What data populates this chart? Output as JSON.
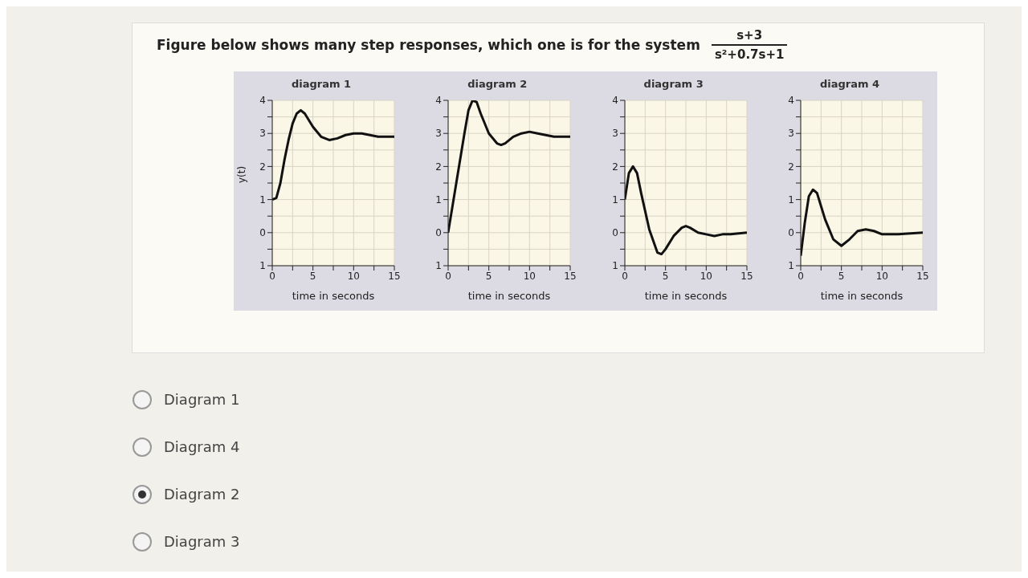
{
  "chart_data": [
    {
      "type": "other",
      "title": "Figure below shows many step responses, which one is for the system",
      "annotations": [
        "s+3",
        "s²+0.7s+1"
      ]
    },
    {
      "type": "line",
      "title": "diagram 1",
      "xlabel": "time in seconds",
      "ylabel": "y(t)",
      "xlim": [
        0,
        15
      ],
      "ylim": [
        -1,
        4
      ],
      "xticks": [
        0,
        {
          "value": 2.5,
          "label": null
        },
        5,
        {
          "value": 7.5,
          "label": null
        },
        10,
        {
          "value": 12.5,
          "label": null
        },
        15
      ],
      "yticks": [
        {
          "value": -1,
          "label": "1"
        },
        {
          "value": -0.5,
          "label": null
        },
        0,
        {
          "value": 0.5,
          "label": null
        },
        1,
        {
          "value": 1.5,
          "label": null
        },
        2,
        {
          "value": 2.5,
          "label": null
        },
        3,
        {
          "value": 3.5,
          "label": null
        },
        4
      ],
      "grid": true,
      "x": [
        0,
        0.5,
        1,
        1.5,
        2,
        2.5,
        3,
        3.5,
        4,
        5,
        6,
        7,
        8,
        9,
        10,
        11,
        12,
        13,
        14,
        15
      ],
      "series": [
        {
          "color": "#111111",
          "values": [
            1.0,
            1.05,
            1.5,
            2.2,
            2.8,
            3.3,
            3.6,
            3.7,
            3.6,
            3.2,
            2.9,
            2.8,
            2.85,
            2.95,
            3.0,
            3.0,
            2.95,
            2.9,
            2.9,
            2.9
          ]
        }
      ]
    },
    {
      "type": "line",
      "title": "diagram 2",
      "xlabel": "time in seconds",
      "xlim": [
        0,
        15
      ],
      "ylim": [
        -1,
        4
      ],
      "xticks": [
        0,
        {
          "value": 2.5,
          "label": null
        },
        5,
        {
          "value": 7.5,
          "label": null
        },
        10,
        {
          "value": 12.5,
          "label": null
        },
        15
      ],
      "yticks": [
        {
          "value": -1,
          "label": "1"
        },
        {
          "value": -0.5,
          "label": null
        },
        0,
        {
          "value": 0.5,
          "label": null
        },
        1,
        {
          "value": 1.5,
          "label": null
        },
        2,
        {
          "value": 2.5,
          "label": null
        },
        3,
        {
          "value": 3.5,
          "label": null
        },
        4
      ],
      "grid": true,
      "x": [
        0,
        1,
        2,
        2.5,
        3,
        3.5,
        4,
        5,
        6,
        6.5,
        7,
        8,
        9,
        10,
        11,
        12,
        13,
        15
      ],
      "series": [
        {
          "color": "#111111",
          "values": [
            0,
            1.5,
            3.0,
            3.7,
            4.0,
            3.95,
            3.6,
            3.0,
            2.7,
            2.65,
            2.7,
            2.9,
            3.0,
            3.05,
            3.0,
            2.95,
            2.9,
            2.9
          ]
        }
      ]
    },
    {
      "type": "line",
      "title": "diagram 3",
      "xlabel": "time in seconds",
      "xlim": [
        0,
        15
      ],
      "ylim": [
        -1,
        4
      ],
      "xticks": [
        0,
        {
          "value": 2.5,
          "label": null
        },
        5,
        {
          "value": 7.5,
          "label": null
        },
        10,
        {
          "value": 12.5,
          "label": null
        },
        15
      ],
      "yticks": [
        {
          "value": -1,
          "label": "1"
        },
        {
          "value": -0.5,
          "label": null
        },
        0,
        {
          "value": 0.5,
          "label": null
        },
        1,
        {
          "value": 1.5,
          "label": null
        },
        2,
        {
          "value": 2.5,
          "label": null
        },
        3,
        {
          "value": 3.5,
          "label": null
        },
        4
      ],
      "grid": true,
      "x": [
        0,
        0.5,
        1,
        1.5,
        2,
        3,
        4,
        4.5,
        5,
        6,
        7,
        7.5,
        8,
        9,
        10,
        11,
        12,
        13,
        15
      ],
      "series": [
        {
          "color": "#111111",
          "values": [
            1.0,
            1.8,
            2.0,
            1.8,
            1.2,
            0.1,
            -0.6,
            -0.65,
            -0.5,
            -0.1,
            0.15,
            0.2,
            0.15,
            0,
            -0.05,
            -0.1,
            -0.05,
            -0.05,
            0
          ]
        }
      ]
    },
    {
      "type": "line",
      "title": "diagram 4",
      "xlabel": "time in seconds",
      "xlim": [
        0,
        15
      ],
      "ylim": [
        -1,
        4
      ],
      "xticks": [
        0,
        {
          "value": 2.5,
          "label": null
        },
        5,
        {
          "value": 7.5,
          "label": null
        },
        10,
        {
          "value": 12.5,
          "label": null
        },
        15
      ],
      "yticks": [
        {
          "value": -1,
          "label": "1"
        },
        {
          "value": -0.5,
          "label": null
        },
        0,
        {
          "value": 0.5,
          "label": null
        },
        1,
        {
          "value": 1.5,
          "label": null
        },
        2,
        {
          "value": 2.5,
          "label": null
        },
        3,
        {
          "value": 3.5,
          "label": null
        },
        4
      ],
      "grid": true,
      "x": [
        0,
        0.5,
        1,
        1.5,
        2,
        3,
        4,
        5,
        6,
        7,
        8,
        9,
        10,
        11,
        12,
        15
      ],
      "series": [
        {
          "color": "#111111",
          "values": [
            -0.7,
            0.3,
            1.1,
            1.3,
            1.2,
            0.4,
            -0.2,
            -0.4,
            -0.2,
            0.05,
            0.1,
            0.05,
            -0.05,
            -0.05,
            -0.05,
            0
          ]
        }
      ]
    },
    {
      "type": "other",
      "annotations": [
        "Diagram 1",
        "Diagram 4",
        "Diagram 2",
        "Diagram 3"
      ]
    }
  ]
}
